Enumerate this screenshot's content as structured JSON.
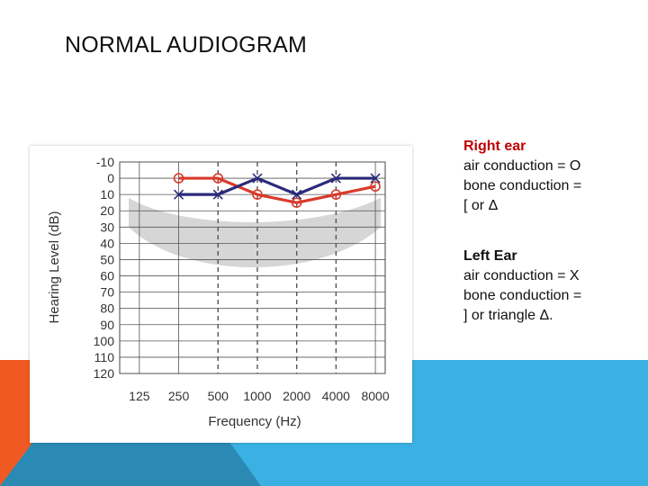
{
  "slide": {
    "title": "NORMAL AUDIOGRAM",
    "colors": {
      "accent_light": "#3aaee0",
      "accent_dark": "#1d86b8",
      "accent_orange": "#f05a22"
    }
  },
  "legend": {
    "right_heading": "Right ear",
    "right_air": "air conduction = O",
    "right_bone_1": "bone conduction =",
    "right_bone_2": "[ or Δ",
    "left_heading": "Left Ear",
    "left_air": "air conduction = X",
    "left_bone_1": "bone conduction =",
    "left_bone_2": "] or triangle Δ."
  },
  "chart_data": {
    "type": "line",
    "xlabel": "Frequency (Hz)",
    "ylabel": "Hearing Level (dB)",
    "categories": [
      "125",
      "250",
      "500",
      "1000",
      "2000",
      "4000",
      "8000"
    ],
    "y_ticks": [
      "-10",
      "0",
      "10",
      "20",
      "30",
      "40",
      "50",
      "60",
      "70",
      "80",
      "90",
      "100",
      "110",
      "120"
    ],
    "ylim": [
      -10,
      120
    ],
    "y_inverted": true,
    "grid": true,
    "dashed_verticals_at": [
      "500",
      "1000",
      "2000",
      "4000"
    ],
    "series": [
      {
        "key": "right",
        "marker": "O",
        "color": "#d93a2b",
        "x": [
          "250",
          "500",
          "1000",
          "2000",
          "4000",
          "8000"
        ],
        "values": [
          0,
          0,
          10,
          15,
          10,
          5
        ]
      },
      {
        "key": "left",
        "marker": "X",
        "color": "#2b2a7a",
        "x": [
          "250",
          "500",
          "1000",
          "2000",
          "4000",
          "8000"
        ],
        "values": [
          10,
          10,
          0,
          10,
          0,
          0
        ]
      }
    ]
  }
}
